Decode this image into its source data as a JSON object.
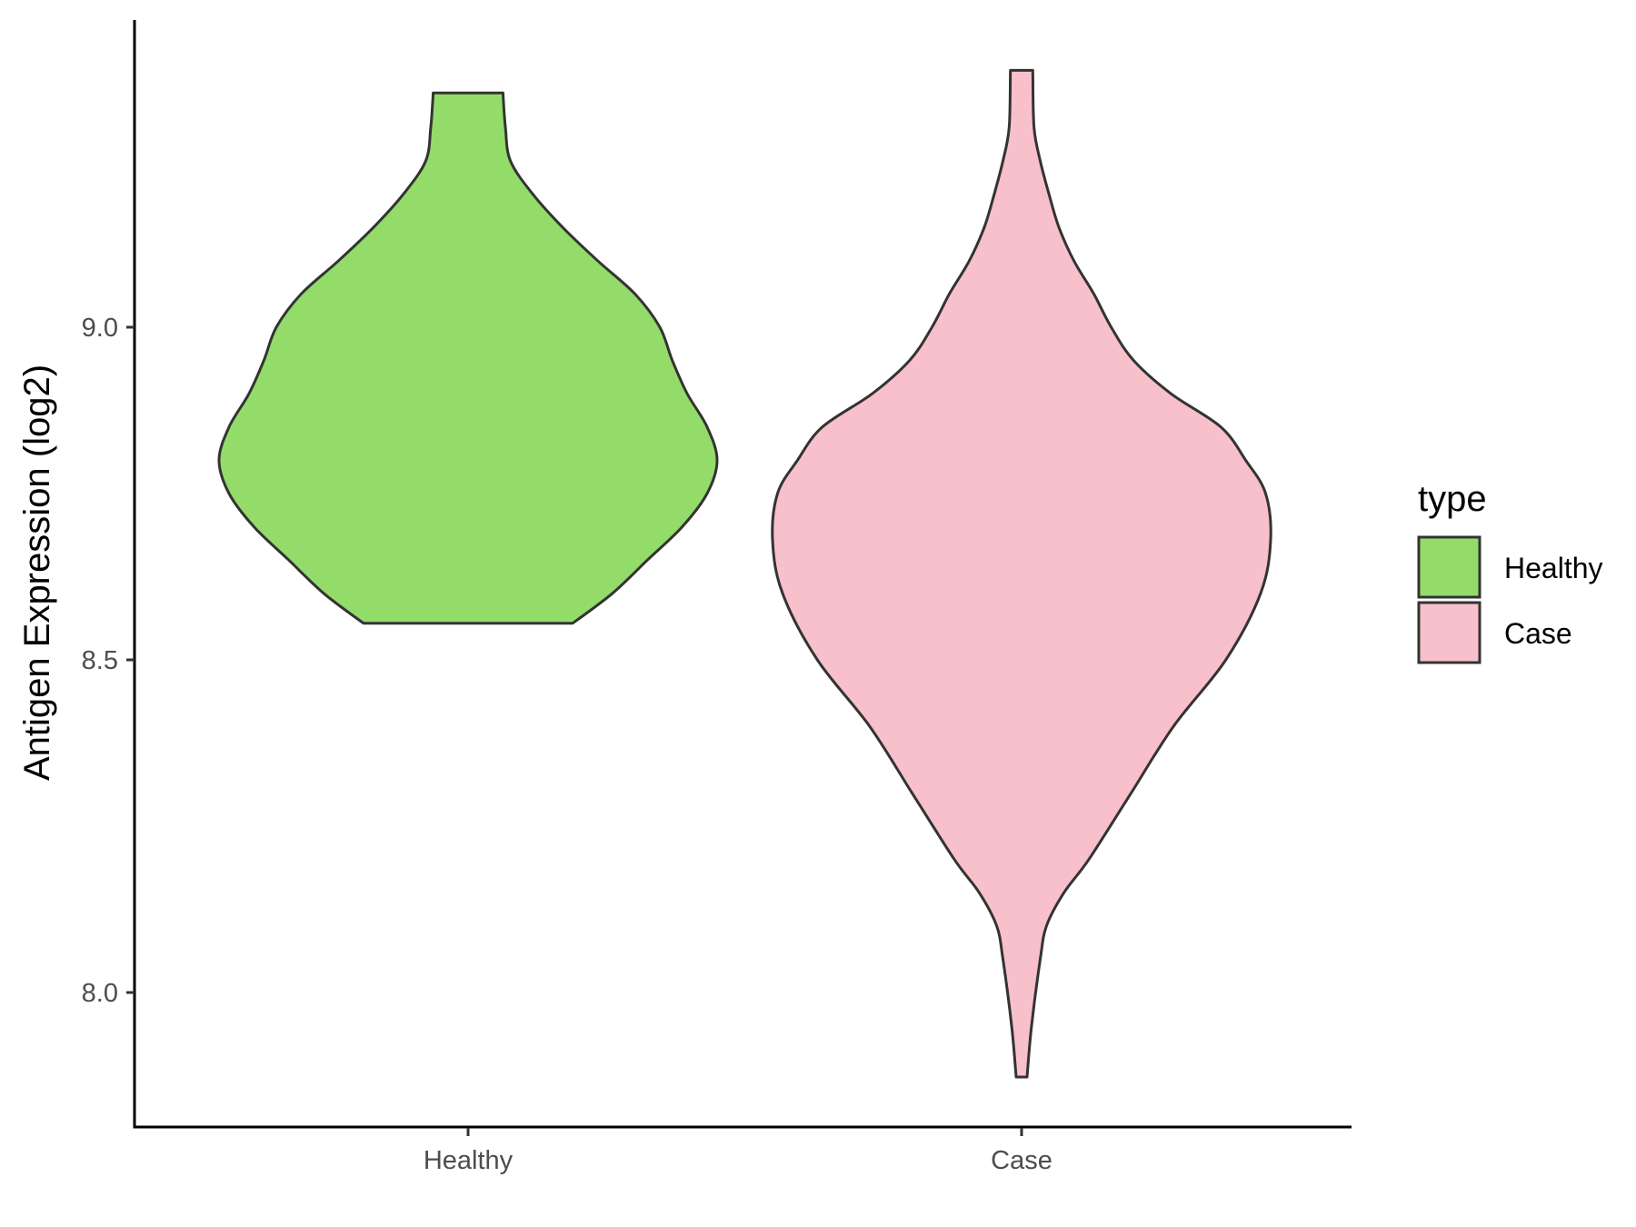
{
  "chart_data": {
    "type": "violin",
    "title": "",
    "xlabel": "",
    "ylabel": "Antigen Expression (log2)",
    "ylim": [
      7.8,
      9.46
    ],
    "y_ticks": [
      {
        "value": 8.0,
        "label": "8.0"
      },
      {
        "value": 8.5,
        "label": "8.5"
      },
      {
        "value": 9.0,
        "label": "9.0"
      }
    ],
    "categories": [
      "Healthy",
      "Case"
    ],
    "legend": {
      "title": "type",
      "position": "right",
      "entries": [
        {
          "label": "Healthy",
          "color": "#93DC6A"
        },
        {
          "label": "Case",
          "color": "#F7C0CB"
        }
      ]
    },
    "grid": false,
    "outline_color": "#333333",
    "series": [
      {
        "name": "Healthy",
        "color": "#93DC6A",
        "min": 8.555,
        "max": 9.352,
        "density": [
          [
            8.555,
            0.42
          ],
          [
            8.6,
            0.58
          ],
          [
            8.65,
            0.72
          ],
          [
            8.7,
            0.86
          ],
          [
            8.75,
            0.96
          ],
          [
            8.8,
            1.0
          ],
          [
            8.85,
            0.96
          ],
          [
            8.9,
            0.88
          ],
          [
            8.95,
            0.82
          ],
          [
            9.0,
            0.77
          ],
          [
            9.05,
            0.67
          ],
          [
            9.1,
            0.52
          ],
          [
            9.15,
            0.38
          ],
          [
            9.2,
            0.26
          ],
          [
            9.25,
            0.17
          ],
          [
            9.3,
            0.15
          ],
          [
            9.352,
            0.14
          ]
        ]
      },
      {
        "name": "Case",
        "color": "#F7C0CB",
        "min": 7.873,
        "max": 9.386,
        "density": [
          [
            7.873,
            0.022
          ],
          [
            7.95,
            0.04
          ],
          [
            8.05,
            0.075
          ],
          [
            8.1,
            0.1
          ],
          [
            8.15,
            0.17
          ],
          [
            8.2,
            0.27
          ],
          [
            8.3,
            0.44
          ],
          [
            8.4,
            0.61
          ],
          [
            8.5,
            0.82
          ],
          [
            8.6,
            0.96
          ],
          [
            8.68,
            1.0
          ],
          [
            8.75,
            0.98
          ],
          [
            8.8,
            0.9
          ],
          [
            8.85,
            0.8
          ],
          [
            8.9,
            0.6
          ],
          [
            8.95,
            0.45
          ],
          [
            9.0,
            0.36
          ],
          [
            9.05,
            0.29
          ],
          [
            9.1,
            0.21
          ],
          [
            9.15,
            0.15
          ],
          [
            9.2,
            0.11
          ],
          [
            9.25,
            0.075
          ],
          [
            9.3,
            0.05
          ],
          [
            9.386,
            0.045
          ]
        ]
      }
    ]
  }
}
